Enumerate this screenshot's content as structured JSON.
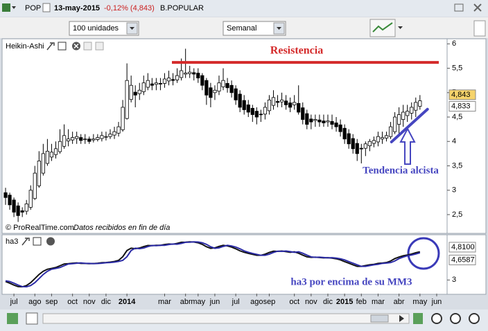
{
  "window": {
    "symbol": "POP",
    "date": "13-may-2015",
    "change": "-0,12% (4,843)",
    "name": "B.POPULAR"
  },
  "toolbar": {
    "quantity": "100 unidades",
    "period": "Semanal"
  },
  "chart_data": [
    {
      "type": "candlestick",
      "title": "Heikin-Ashi",
      "up_color": "#ffffff",
      "down_color": "#000000",
      "wick_color": "#000000",
      "open": [
        2.95,
        2.9,
        2.8,
        2.68,
        2.58,
        2.57,
        2.65,
        2.83,
        3.09,
        3.35,
        3.55,
        3.68,
        3.73,
        3.79,
        3.9,
        4.01,
        4.03,
        4.06,
        4.08,
        4.05,
        4.05,
        4.03,
        4.04,
        4.06,
        4.09,
        4.1,
        4.13,
        4.17,
        4.24,
        4.47,
        4.86,
        5.01,
        4.98,
        5.02,
        5.11,
        5.18,
        5.17,
        5.19,
        5.19,
        5.24,
        5.27,
        5.26,
        5.31,
        5.38,
        5.39,
        5.41,
        5.4,
        5.35,
        5.25,
        5.1,
        5.0,
        5.03,
        5.12,
        5.19,
        5.15,
        5.08,
        4.97,
        4.84,
        4.75,
        4.68,
        4.62,
        4.56,
        4.56,
        4.63,
        4.74,
        4.82,
        4.81,
        4.83,
        4.79,
        4.75,
        4.78,
        4.69,
        4.57,
        4.46,
        4.43,
        4.44,
        4.42,
        4.4,
        4.41,
        4.38,
        4.34,
        4.27,
        4.16,
        4.06,
        3.96,
        3.86,
        3.86,
        3.91,
        3.96,
        3.99,
        4.05,
        4.07,
        4.1,
        4.2,
        4.35,
        4.45,
        4.53,
        4.58,
        4.64,
        4.72,
        null,
        null,
        null,
        null
      ],
      "high": [
        3.05,
        2.95,
        2.85,
        2.75,
        2.65,
        2.8,
        3.1,
        3.5,
        3.8,
        3.95,
        4.05,
        3.95,
        4.0,
        4.25,
        4.35,
        4.25,
        4.2,
        4.2,
        4.15,
        4.15,
        4.1,
        4.15,
        4.15,
        4.2,
        4.2,
        4.25,
        4.3,
        4.4,
        4.85,
        5.6,
        5.35,
        5.15,
        5.2,
        5.35,
        5.4,
        5.3,
        5.3,
        5.3,
        5.4,
        5.45,
        5.4,
        5.5,
        5.7,
        5.9,
        5.55,
        5.5,
        5.5,
        5.4,
        5.3,
        5.2,
        5.15,
        5.35,
        5.5,
        5.3,
        5.25,
        5.15,
        5.05,
        4.95,
        4.85,
        4.75,
        4.7,
        4.65,
        4.8,
        4.95,
        5.05,
        4.95,
        5.0,
        4.95,
        4.9,
        4.95,
        5.15,
        4.8,
        4.65,
        4.55,
        4.55,
        4.55,
        4.55,
        4.55,
        4.55,
        4.5,
        4.45,
        4.35,
        4.25,
        4.15,
        4.05,
        3.95,
        4.0,
        4.05,
        4.1,
        4.2,
        4.2,
        4.2,
        4.4,
        4.6,
        4.7,
        4.75,
        4.75,
        4.8,
        4.9,
        4.95,
        null,
        null,
        null,
        null
      ],
      "low": [
        2.7,
        2.6,
        2.45,
        2.35,
        2.45,
        2.5,
        2.6,
        2.8,
        3.05,
        3.3,
        3.5,
        3.6,
        3.65,
        3.75,
        3.85,
        3.9,
        3.95,
        3.95,
        3.95,
        3.95,
        3.95,
        3.98,
        4.0,
        4.0,
        4.02,
        4.05,
        4.05,
        4.1,
        4.2,
        4.45,
        4.8,
        4.7,
        4.85,
        4.95,
        5.05,
        5.05,
        5.05,
        5.05,
        5.1,
        5.15,
        5.15,
        5.2,
        5.25,
        5.3,
        5.3,
        5.25,
        5.2,
        5.05,
        4.75,
        4.7,
        4.85,
        4.95,
        5.05,
        5.0,
        4.9,
        4.75,
        4.6,
        4.55,
        4.5,
        4.4,
        4.35,
        4.4,
        4.45,
        4.55,
        4.65,
        4.7,
        4.7,
        4.65,
        4.6,
        4.65,
        4.55,
        4.35,
        4.25,
        4.25,
        4.3,
        4.3,
        4.3,
        4.3,
        4.25,
        4.2,
        4.1,
        3.95,
        3.85,
        3.75,
        3.6,
        3.55,
        3.7,
        3.8,
        3.88,
        3.9,
        3.95,
        4.0,
        4.05,
        4.15,
        4.15,
        4.3,
        4.4,
        4.45,
        4.5,
        4.65,
        null,
        null,
        null,
        null
      ],
      "close": [
        2.85,
        2.7,
        2.55,
        2.48,
        2.55,
        2.72,
        3.0,
        3.35,
        3.6,
        3.75,
        3.8,
        3.78,
        3.85,
        4.0,
        4.12,
        4.05,
        4.08,
        4.1,
        4.02,
        4.05,
        4.0,
        4.05,
        4.08,
        4.12,
        4.1,
        4.15,
        4.2,
        4.3,
        4.7,
        5.25,
        5.15,
        4.95,
        5.05,
        5.2,
        5.25,
        5.15,
        5.2,
        5.18,
        5.28,
        5.3,
        5.25,
        5.35,
        5.45,
        5.4,
        5.42,
        5.38,
        5.3,
        5.15,
        4.95,
        4.9,
        5.05,
        5.2,
        5.25,
        5.1,
        5.0,
        4.85,
        4.7,
        4.65,
        4.6,
        4.55,
        4.5,
        4.55,
        4.7,
        4.85,
        4.9,
        4.8,
        4.85,
        4.75,
        4.7,
        4.8,
        4.6,
        4.45,
        4.35,
        4.4,
        4.45,
        4.4,
        4.38,
        4.42,
        4.35,
        4.3,
        4.2,
        4.05,
        3.95,
        3.85,
        3.75,
        3.85,
        3.95,
        4.0,
        4.02,
        4.1,
        4.08,
        4.12,
        4.3,
        4.5,
        4.55,
        4.6,
        4.62,
        4.7,
        4.8,
        4.833,
        null,
        null,
        null,
        null
      ],
      "ylim": [
        2.13,
        6.09
      ],
      "yticks": [
        {
          "value": 2.5,
          "label": "2,5"
        },
        3,
        {
          "value": 3.5,
          "label": "3,5"
        },
        4,
        {
          "value": 4.5,
          "label": "4,5"
        },
        5,
        {
          "value": 5.5,
          "label": "5,5"
        },
        6
      ],
      "price_labels": [
        {
          "value": 4.843,
          "label": "4,843",
          "color": "#f6d36b"
        },
        {
          "value": 4.833,
          "label": "4,833",
          "color": "#ffffff"
        }
      ],
      "annotations": [
        {
          "text": "Resistencia",
          "y": 5.62,
          "color": "#d42a2a"
        },
        {
          "text": "Tendencia alcista",
          "x": [
            92.2,
            100.8
          ],
          "y": [
            3.99,
            4.66
          ],
          "color": "#4646c0"
        }
      ],
      "copyright": "© ProRealTime.com",
      "note": "Datos recibidos en fin de día"
    },
    {
      "type": "line",
      "title": "ha3",
      "categories": [
        null,
        null,
        "jul",
        null,
        null,
        null,
        null,
        "ago",
        null,
        null,
        null,
        "sep",
        null,
        null,
        null,
        null,
        "oct",
        null,
        null,
        null,
        "nov",
        null,
        null,
        null,
        "dic",
        null,
        null,
        null,
        null,
        "2014",
        null,
        null,
        null,
        null,
        null,
        null,
        null,
        null,
        "mar",
        null,
        null,
        null,
        null,
        "abr",
        null,
        null,
        "may",
        null,
        null,
        null,
        "jun",
        null,
        null,
        null,
        null,
        "jul",
        null,
        null,
        null,
        null,
        "ago",
        null,
        null,
        "sep",
        null,
        null,
        null,
        null,
        null,
        "oct",
        null,
        null,
        null,
        "nov",
        null,
        null,
        null,
        "dic",
        null,
        null,
        null,
        "2015",
        null,
        null,
        null,
        "feb",
        null,
        null,
        null,
        "mar",
        null,
        null,
        null,
        null,
        "abr",
        null,
        null,
        null,
        null,
        "may",
        null,
        null,
        null,
        "jun"
      ],
      "series": [
        {
          "color": "#111111",
          "values": [
            2.9,
            2.8,
            2.68,
            2.58,
            2.57,
            2.65,
            2.83,
            3.09,
            3.35,
            3.55,
            3.68,
            3.73,
            3.79,
            3.9,
            4.01,
            4.03,
            4.06,
            4.08,
            4.05,
            4.05,
            4.03,
            4.04,
            4.06,
            4.09,
            4.1,
            4.13,
            4.17,
            4.24,
            4.47,
            4.86,
            5.01,
            4.98,
            5.02,
            5.11,
            5.18,
            5.17,
            5.19,
            5.19,
            5.24,
            5.27,
            5.26,
            5.31,
            5.38,
            5.39,
            5.41,
            5.4,
            5.35,
            5.25,
            5.1,
            5.0,
            5.03,
            5.12,
            5.19,
            5.15,
            5.08,
            4.97,
            4.84,
            4.75,
            4.68,
            4.62,
            4.56,
            4.56,
            4.63,
            4.74,
            4.82,
            4.81,
            4.83,
            4.79,
            4.75,
            4.78,
            4.69,
            4.57,
            4.46,
            4.43,
            4.44,
            4.42,
            4.4,
            4.41,
            4.38,
            4.34,
            4.27,
            4.16,
            4.06,
            3.96,
            3.86,
            3.86,
            3.91,
            3.96,
            3.99,
            4.05,
            4.07,
            4.1,
            4.2,
            4.35,
            4.45,
            4.53,
            4.58,
            4.64,
            4.72,
            4.78,
            null,
            null,
            null,
            null
          ]
        },
        {
          "color": "#2b2ba6",
          "values": [
            2.95,
            2.9,
            2.8,
            2.68,
            2.58,
            2.57,
            2.65,
            2.83,
            3.09,
            3.35,
            3.55,
            3.68,
            3.73,
            3.79,
            3.9,
            4.01,
            4.03,
            4.06,
            4.08,
            4.05,
            4.05,
            4.03,
            4.04,
            4.06,
            4.09,
            4.1,
            4.13,
            4.17,
            4.24,
            4.47,
            4.86,
            5.01,
            4.98,
            5.02,
            5.11,
            5.18,
            5.17,
            5.19,
            5.19,
            5.24,
            5.27,
            5.26,
            5.31,
            5.38,
            5.39,
            5.41,
            5.4,
            5.35,
            5.25,
            5.1,
            5.0,
            5.03,
            5.12,
            5.19,
            5.15,
            5.08,
            4.97,
            4.84,
            4.75,
            4.68,
            4.62,
            4.56,
            4.56,
            4.63,
            4.74,
            4.82,
            4.81,
            4.83,
            4.79,
            4.75,
            4.78,
            4.69,
            4.57,
            4.46,
            4.43,
            4.44,
            4.42,
            4.4,
            4.41,
            4.38,
            4.34,
            4.27,
            4.16,
            4.06,
            3.96,
            3.86,
            3.86,
            3.91,
            3.96,
            3.99,
            4.05,
            4.07,
            4.1,
            4.2,
            4.35,
            4.45,
            4.53,
            4.58,
            4.64,
            4.72,
            null,
            null,
            null,
            null
          ]
        }
      ],
      "ylim": [
        2.14,
        5.77
      ],
      "yticks": [
        3
      ],
      "price_labels": [
        {
          "value": 4.81,
          "label": "4,8100",
          "color": "#ffffff"
        },
        {
          "value": 4.6587,
          "label": "4,6587",
          "color": "#ffffff"
        }
      ],
      "annotations": [
        {
          "text": "ha3 por encima de su MM3",
          "color": "#4646c0"
        }
      ]
    }
  ]
}
